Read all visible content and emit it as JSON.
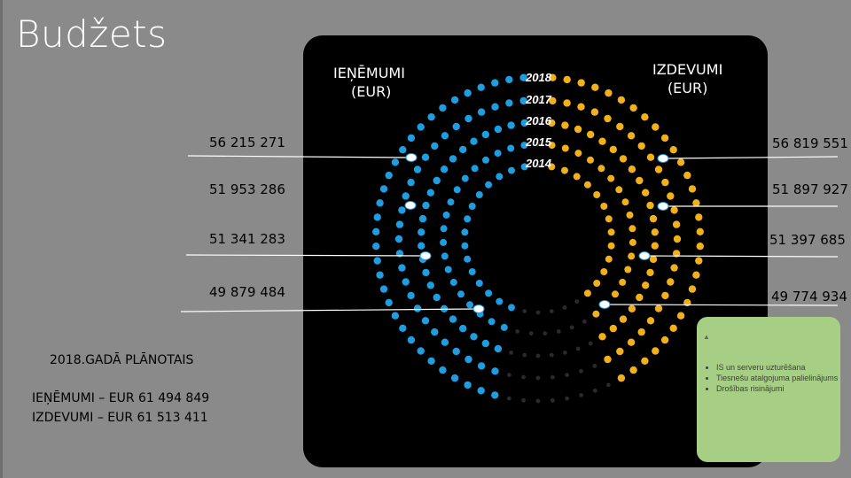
{
  "slide": {
    "title": "Budžets"
  },
  "panel": {
    "income_label": [
      "IEŅĒMUMI",
      "(EUR)"
    ],
    "expense_label": [
      "IZDEVUMI",
      "(EUR)"
    ]
  },
  "summary": {
    "heading": "2018.GADĀ PLĀNOTAIS",
    "income_line": "IEŅĒMUMI – EUR 61 494 849",
    "expense_line": "IZDEVUMI –  EUR 61 513 411"
  },
  "notes": {
    "items": [
      "IS un serveru uzturēšana",
      "Tiesnešu atalgojuma palielinājums",
      "Drošības risinājumi"
    ]
  },
  "colors": {
    "income": "#1e9de0",
    "expense": "#f2b01b",
    "unfilled": "#2a2a2a"
  },
  "chart_data": {
    "type": "radial-dot",
    "title": "Budžets",
    "unit": "EUR",
    "years": [
      "2018",
      "2017",
      "2016",
      "2015",
      "2014"
    ],
    "series": [
      {
        "name": "IEŅĒMUMI (EUR)",
        "values": [
          null,
          56215271,
          51953286,
          51341283,
          49879484
        ]
      },
      {
        "name": "IZDEVUMI (EUR)",
        "values": [
          null,
          56819551,
          51897927,
          51397685,
          49774934
        ]
      }
    ],
    "labels_income": [
      "56 215 271",
      "51 953 286",
      "51 341 283",
      "49 879 484"
    ],
    "labels_expense": [
      "56 819 551",
      "51 897 927",
      "51 397 685",
      "49 774 934"
    ]
  }
}
